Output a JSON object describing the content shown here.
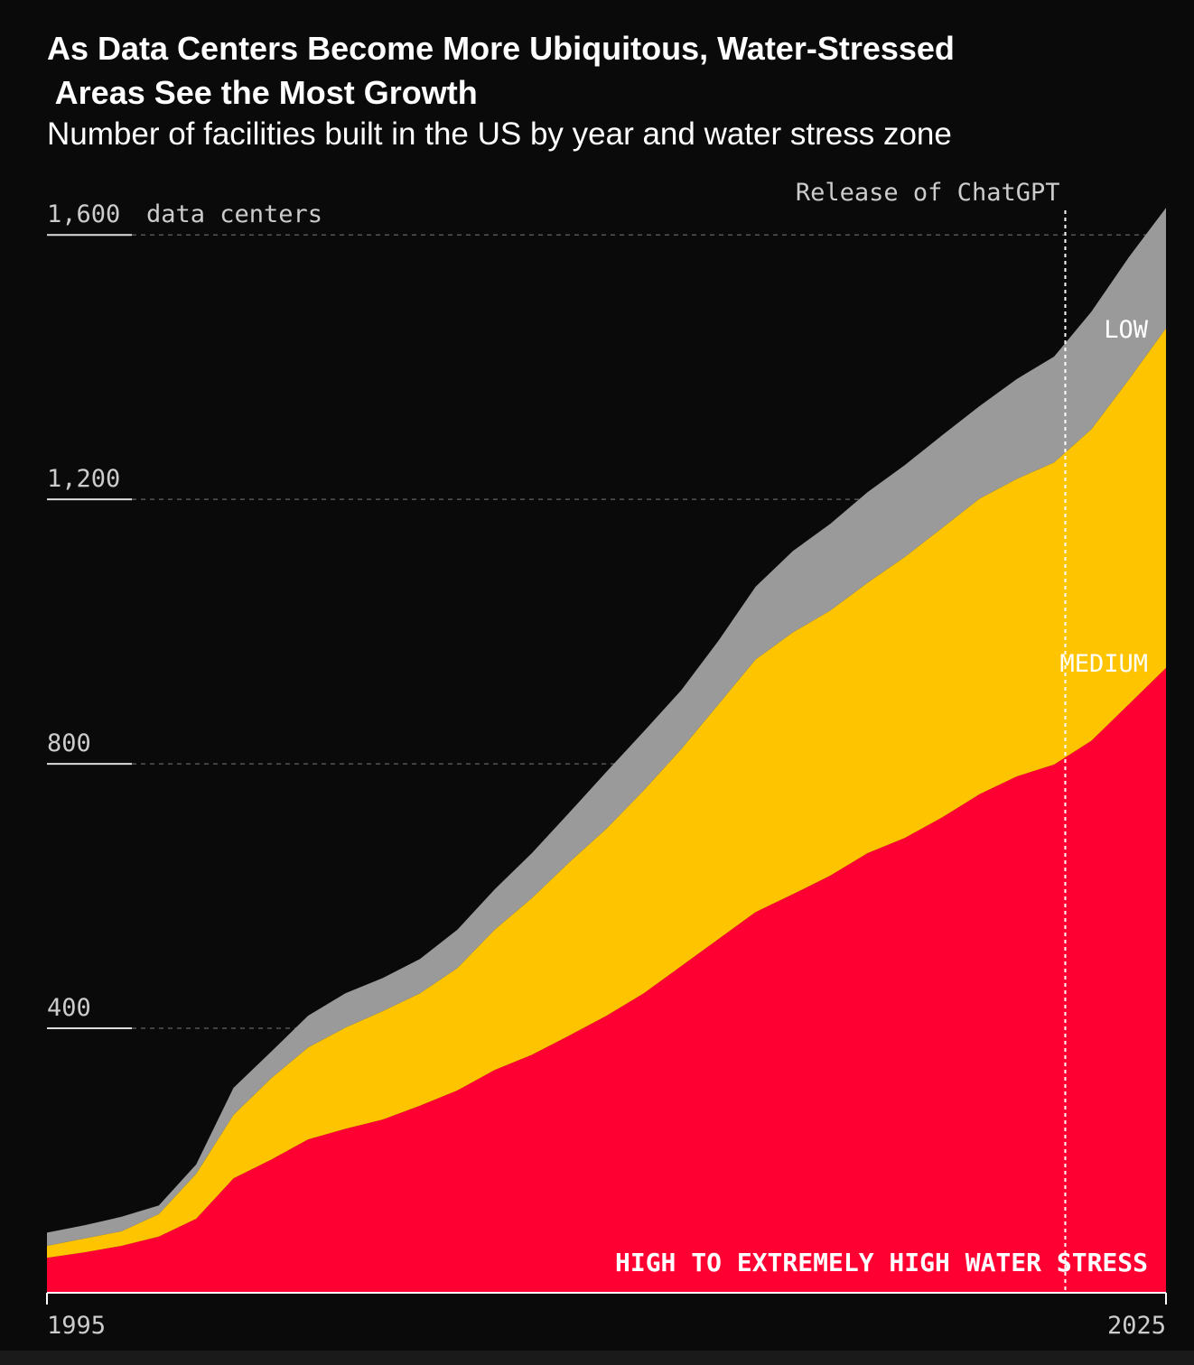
{
  "chart_data": {
    "type": "stacked-area",
    "title": "As Data Centers Become More Ubiquitous, Water-Stressed Areas See the Most Growth",
    "subtitle": "Number of facilities built in the US by year and water stress zone",
    "y_label": "data centers",
    "x": [
      1995,
      1996,
      1997,
      1998,
      1999,
      2000,
      2001,
      2002,
      2003,
      2004,
      2005,
      2006,
      2007,
      2008,
      2009,
      2010,
      2011,
      2012,
      2013,
      2014,
      2015,
      2016,
      2017,
      2018,
      2019,
      2020,
      2021,
      2022,
      2023,
      2024,
      2025
    ],
    "series": [
      {
        "name": "HIGH TO EXTREMELY HIGH WATER STRESS",
        "color": "#ff0033",
        "values": [
          53,
          61,
          71,
          85,
          112,
          173,
          201,
          232,
          248,
          262,
          283,
          306,
          337,
          360,
          389,
          419,
          453,
          494,
          535,
          576,
          603,
          631,
          665,
          688,
          719,
          754,
          781,
          799,
          835,
          890,
          945
        ]
      },
      {
        "name": "MEDIUM",
        "color": "#ffc400",
        "values": [
          18,
          21,
          22,
          34,
          68,
          96,
          123,
          139,
          153,
          164,
          170,
          185,
          212,
          237,
          262,
          283,
          307,
          328,
          355,
          382,
          396,
          401,
          409,
          425,
          438,
          447,
          450,
          457,
          471,
          491,
          514
        ]
      },
      {
        "name": "LOW",
        "color": "#9a9a9a",
        "values": [
          20,
          20,
          22,
          13,
          14,
          41,
          40,
          48,
          52,
          50,
          52,
          58,
          61,
          68,
          75,
          86,
          89,
          89,
          96,
          110,
          123,
          131,
          137,
          139,
          140,
          140,
          151,
          160,
          178,
          185,
          182
        ]
      }
    ],
    "xlim": [
      1995,
      2025
    ],
    "xticks": [
      1995,
      2025
    ],
    "ylim": [
      0,
      1700
    ],
    "yticks": [
      400,
      800,
      {
        "value": 1200,
        "label": "1,200"
      },
      {
        "value": 1600,
        "label": "1,600"
      }
    ],
    "grid": true,
    "annotations": [
      {
        "text": "Release of ChatGPT",
        "x": 2022.3
      }
    ]
  }
}
